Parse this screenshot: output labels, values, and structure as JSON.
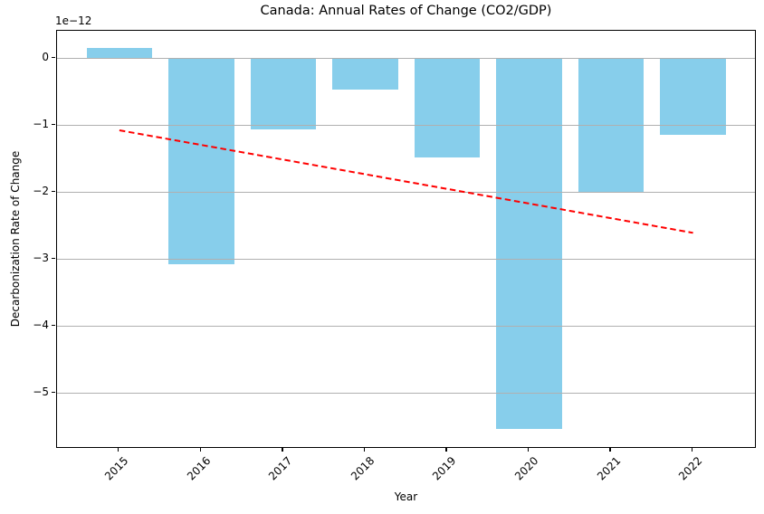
{
  "figure": {
    "kind": "matplotlib-style static chart"
  },
  "chart_data": {
    "type": "bar",
    "title": "Canada: Annual Rates of Change (CO2/GDP)",
    "xlabel": "Year",
    "ylabel": "Decarbonization Rate of Change",
    "y_scale_offset_label": "1e−12",
    "categories": [
      "2015",
      "2016",
      "2017",
      "2018",
      "2019",
      "2020",
      "2021",
      "2022"
    ],
    "values_e12": [
      0.15,
      -3.08,
      -1.06,
      -0.47,
      -1.49,
      -5.53,
      -2.01,
      -1.15
    ],
    "units": "values are in 1e-12 (axis offset scale)",
    "ytick_labels": [
      "0",
      "−1",
      "−2",
      "−3",
      "−4",
      "−5"
    ],
    "ytick_values": [
      0,
      -1,
      -2,
      -3,
      -4,
      -5
    ],
    "ylim_e12": [
      -5.83,
      0.42
    ],
    "grid": "horizontal-only, drawn above bars",
    "legend": "none",
    "bar_color": "#87ceeb",
    "grid_color": "#b0b0b0",
    "trendline": {
      "style": "dashed",
      "color": "#ff0000",
      "start_category": "2015",
      "start_value_e12": -1.08,
      "end_category": "2022",
      "end_value_e12": -2.61
    }
  }
}
